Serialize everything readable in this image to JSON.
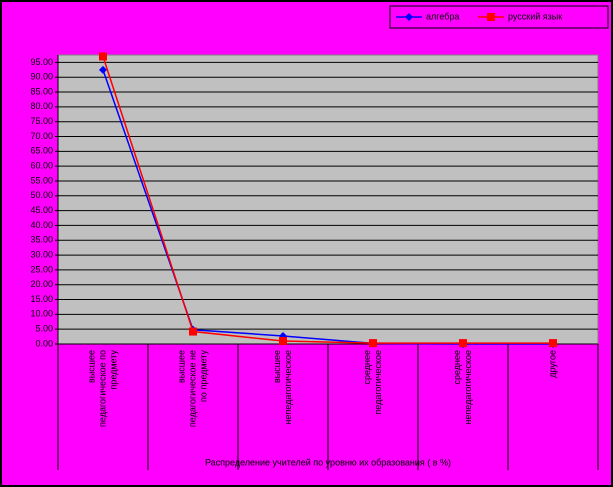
{
  "chart_data": {
    "type": "line",
    "xlabel": "Распределение учителей по уровню их образования ( в %)",
    "categories": [
      [
        "высшее",
        "педагогическое по",
        "предмету"
      ],
      [
        "высшее",
        "педагогическое не",
        "по предмету"
      ],
      [
        "высшее",
        "непедагогическое"
      ],
      [
        "среднее",
        "педагогическое"
      ],
      [
        "среднее",
        "непедагогическое"
      ],
      [
        "другое"
      ]
    ],
    "series": [
      {
        "name": "алгебра",
        "color": "#0000ff",
        "marker": "diamond",
        "values": [
          92.5,
          4.8,
          2.7,
          0.2,
          0,
          0
        ]
      },
      {
        "name": "русский язык",
        "color": "#ff0000",
        "marker": "square",
        "values": [
          97.0,
          4.2,
          1.0,
          0.3,
          0.3,
          0.3
        ]
      }
    ],
    "ylim": [
      0,
      97.5
    ],
    "yticks": [
      {
        "value": 0,
        "label": "0.00"
      },
      {
        "value": 5,
        "label": "5.00"
      },
      {
        "value": 10,
        "label": "10.00"
      },
      {
        "value": 15,
        "label": "15.00"
      },
      {
        "value": 20,
        "label": "20.00"
      },
      {
        "value": 25,
        "label": "25.00"
      },
      {
        "value": 30,
        "label": "30.00"
      },
      {
        "value": 35,
        "label": "35.00"
      },
      {
        "value": 40,
        "label": "40.00"
      },
      {
        "value": 45,
        "label": "45.00"
      },
      {
        "value": 50,
        "label": "50.00"
      },
      {
        "value": 55,
        "label": "55.00"
      },
      {
        "value": 60,
        "label": "60.00"
      },
      {
        "value": 65,
        "label": "65.00"
      },
      {
        "value": 70,
        "label": "70.00"
      },
      {
        "value": 75,
        "label": "75.00"
      },
      {
        "value": 80,
        "label": "80.00"
      },
      {
        "value": 85,
        "label": "85.00"
      },
      {
        "value": 90,
        "label": "90.00"
      },
      {
        "value": 95,
        "label": "95.00"
      }
    ],
    "grid": true,
    "legend": "top-right"
  }
}
